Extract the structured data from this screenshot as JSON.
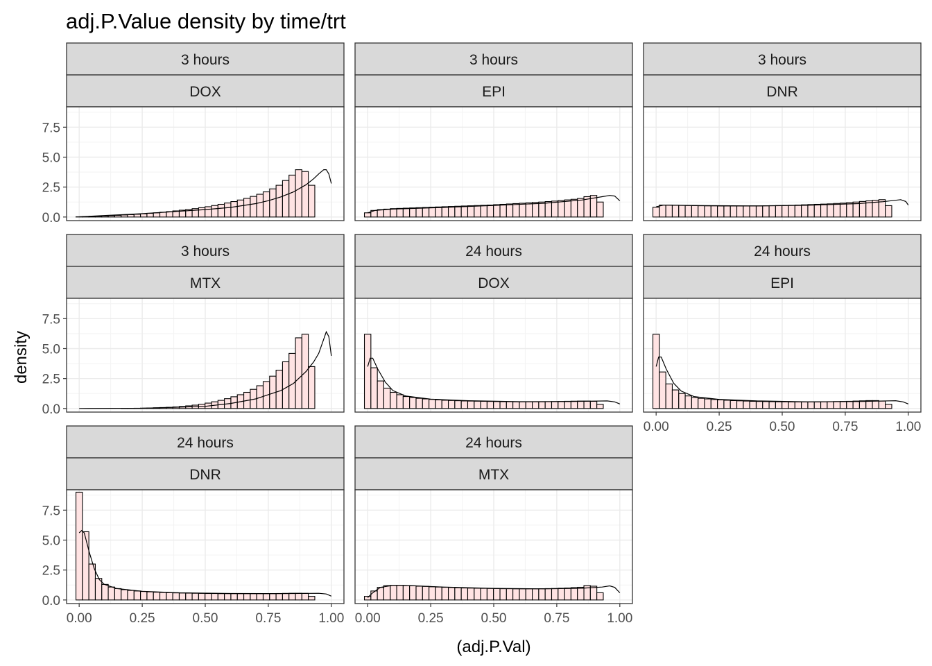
{
  "chart_data": {
    "type": "histogram",
    "title": "adj.P.Value density by time/trt",
    "xlabel": "(adj.P.Val)",
    "ylabel": "density",
    "xlim": [
      -0.05,
      1.05
    ],
    "ylim": [
      -0.3,
      9.2
    ],
    "x_ticks": [
      "0.00",
      "0.25",
      "0.50",
      "0.75",
      "1.00"
    ],
    "x_tick_values": [
      0,
      0.25,
      0.5,
      0.75,
      1.0
    ],
    "y_ticks": [
      "0.0",
      "2.5",
      "5.0",
      "7.5"
    ],
    "y_tick_values": [
      0,
      2.5,
      5.0,
      7.5
    ],
    "bin_width": 0.0256,
    "bin_centers_first": 0.0,
    "grid": true,
    "colors": {
      "bar_fill": "#ffe3e3",
      "bar_stroke": "#000000",
      "strip_fill": "#d9d9d9",
      "panel_border": "#333333",
      "grid": "#ebebeb"
    },
    "panels": [
      {
        "time": "3 hours",
        "trt": "DOX",
        "values": [
          0.02,
          0.03,
          0.05,
          0.07,
          0.09,
          0.11,
          0.14,
          0.17,
          0.2,
          0.23,
          0.27,
          0.31,
          0.35,
          0.4,
          0.45,
          0.51,
          0.57,
          0.63,
          0.7,
          0.78,
          0.86,
          0.96,
          1.06,
          1.17,
          1.29,
          1.42,
          1.56,
          1.72,
          1.9,
          2.1,
          2.35,
          2.65,
          3.05,
          3.5,
          3.95,
          3.8,
          2.65
        ],
        "density": [
          [
            0,
            0.02
          ],
          [
            0.25,
            0.28
          ],
          [
            0.5,
            0.62
          ],
          [
            0.6,
            0.8
          ],
          [
            0.7,
            1.12
          ],
          [
            0.75,
            1.36
          ],
          [
            0.8,
            1.68
          ],
          [
            0.85,
            2.1
          ],
          [
            0.9,
            2.7
          ],
          [
            0.93,
            3.2
          ],
          [
            0.95,
            3.6
          ],
          [
            0.97,
            3.95
          ],
          [
            0.98,
            3.95
          ],
          [
            0.99,
            3.6
          ],
          [
            1.0,
            2.8
          ]
        ]
      },
      {
        "time": "3 hours",
        "trt": "EPI",
        "values": [
          0.35,
          0.55,
          0.62,
          0.66,
          0.7,
          0.72,
          0.74,
          0.76,
          0.78,
          0.8,
          0.82,
          0.84,
          0.86,
          0.88,
          0.9,
          0.92,
          0.94,
          0.96,
          0.98,
          1.0,
          1.03,
          1.06,
          1.09,
          1.12,
          1.15,
          1.18,
          1.22,
          1.25,
          1.29,
          1.33,
          1.38,
          1.43,
          1.48,
          1.55,
          1.7,
          1.8,
          1.25
        ],
        "density": [
          [
            0,
            0.35
          ],
          [
            0.03,
            0.55
          ],
          [
            0.1,
            0.66
          ],
          [
            0.3,
            0.8
          ],
          [
            0.5,
            0.96
          ],
          [
            0.7,
            1.15
          ],
          [
            0.85,
            1.42
          ],
          [
            0.93,
            1.7
          ],
          [
            0.96,
            1.8
          ],
          [
            0.98,
            1.75
          ],
          [
            1.0,
            1.35
          ]
        ]
      },
      {
        "time": "3 hours",
        "trt": "DNR",
        "values": [
          0.82,
          1.0,
          1.0,
          0.98,
          0.97,
          0.96,
          0.95,
          0.94,
          0.93,
          0.93,
          0.92,
          0.92,
          0.92,
          0.92,
          0.92,
          0.93,
          0.93,
          0.94,
          0.95,
          0.96,
          0.97,
          0.98,
          1.0,
          1.02,
          1.04,
          1.06,
          1.08,
          1.1,
          1.13,
          1.16,
          1.2,
          1.25,
          1.3,
          1.35,
          1.4,
          1.45,
          0.95
        ],
        "density": [
          [
            0,
            0.85
          ],
          [
            0.03,
            1.0
          ],
          [
            0.2,
            0.95
          ],
          [
            0.4,
            0.92
          ],
          [
            0.6,
            0.98
          ],
          [
            0.8,
            1.12
          ],
          [
            0.9,
            1.28
          ],
          [
            0.97,
            1.45
          ],
          [
            0.99,
            1.3
          ],
          [
            1.0,
            1.0
          ]
        ]
      },
      {
        "time": "3 hours",
        "trt": "MTX",
        "values": [
          0,
          0,
          0,
          0,
          0,
          0,
          0,
          0.01,
          0.01,
          0.02,
          0.03,
          0.04,
          0.06,
          0.08,
          0.1,
          0.13,
          0.17,
          0.22,
          0.28,
          0.36,
          0.45,
          0.56,
          0.68,
          0.82,
          0.98,
          1.15,
          1.35,
          1.6,
          1.9,
          2.25,
          2.7,
          3.2,
          3.9,
          4.6,
          5.9,
          6.2,
          3.5
        ],
        "density": [
          [
            0,
            0
          ],
          [
            0.25,
            0.02
          ],
          [
            0.5,
            0.18
          ],
          [
            0.6,
            0.42
          ],
          [
            0.7,
            0.8
          ],
          [
            0.8,
            1.5
          ],
          [
            0.85,
            2.1
          ],
          [
            0.9,
            3.1
          ],
          [
            0.93,
            3.9
          ],
          [
            0.95,
            4.6
          ],
          [
            0.97,
            5.8
          ],
          [
            0.98,
            6.4
          ],
          [
            0.99,
            6.0
          ],
          [
            1.0,
            4.4
          ]
        ]
      },
      {
        "time": "24 hours",
        "trt": "DOX",
        "values": [
          6.2,
          3.4,
          2.3,
          1.7,
          1.35,
          1.15,
          1.0,
          0.92,
          0.85,
          0.8,
          0.76,
          0.72,
          0.69,
          0.67,
          0.65,
          0.63,
          0.62,
          0.61,
          0.6,
          0.59,
          0.58,
          0.57,
          0.57,
          0.56,
          0.56,
          0.56,
          0.56,
          0.56,
          0.57,
          0.58,
          0.59,
          0.6,
          0.61,
          0.62,
          0.62,
          0.6,
          0.35
        ],
        "density": [
          [
            0,
            3.5
          ],
          [
            0.01,
            4.2
          ],
          [
            0.02,
            4.2
          ],
          [
            0.04,
            3.3
          ],
          [
            0.07,
            2.2
          ],
          [
            0.1,
            1.5
          ],
          [
            0.15,
            1.05
          ],
          [
            0.25,
            0.78
          ],
          [
            0.4,
            0.65
          ],
          [
            0.6,
            0.57
          ],
          [
            0.8,
            0.58
          ],
          [
            0.95,
            0.63
          ],
          [
            0.98,
            0.55
          ],
          [
            1.0,
            0.38
          ]
        ]
      },
      {
        "time": "24 hours",
        "trt": "EPI",
        "values": [
          6.2,
          3.05,
          2.05,
          1.55,
          1.25,
          1.05,
          0.92,
          0.85,
          0.8,
          0.75,
          0.72,
          0.69,
          0.66,
          0.64,
          0.62,
          0.6,
          0.59,
          0.58,
          0.57,
          0.56,
          0.56,
          0.55,
          0.55,
          0.55,
          0.55,
          0.55,
          0.56,
          0.57,
          0.58,
          0.59,
          0.6,
          0.62,
          0.64,
          0.66,
          0.66,
          0.62,
          0.35
        ],
        "density": [
          [
            0,
            3.5
          ],
          [
            0.01,
            4.3
          ],
          [
            0.02,
            4.3
          ],
          [
            0.04,
            3.3
          ],
          [
            0.07,
            2.1
          ],
          [
            0.1,
            1.45
          ],
          [
            0.15,
            1.0
          ],
          [
            0.25,
            0.76
          ],
          [
            0.4,
            0.63
          ],
          [
            0.6,
            0.56
          ],
          [
            0.8,
            0.58
          ],
          [
            0.95,
            0.65
          ],
          [
            0.98,
            0.55
          ],
          [
            1.0,
            0.38
          ]
        ]
      },
      {
        "time": "24 hours",
        "trt": "DNR",
        "values": [
          9.0,
          5.7,
          3.0,
          1.8,
          1.3,
          1.08,
          0.95,
          0.86,
          0.8,
          0.75,
          0.71,
          0.68,
          0.65,
          0.63,
          0.61,
          0.59,
          0.58,
          0.57,
          0.56,
          0.55,
          0.54,
          0.54,
          0.53,
          0.53,
          0.53,
          0.53,
          0.53,
          0.53,
          0.53,
          0.53,
          0.53,
          0.54,
          0.55,
          0.56,
          0.56,
          0.55,
          0.3
        ],
        "density": [
          [
            0,
            5.6
          ],
          [
            0.01,
            5.8
          ],
          [
            0.02,
            5.6
          ],
          [
            0.04,
            4.0
          ],
          [
            0.06,
            2.6
          ],
          [
            0.08,
            1.7
          ],
          [
            0.1,
            1.3
          ],
          [
            0.15,
            0.95
          ],
          [
            0.25,
            0.72
          ],
          [
            0.4,
            0.6
          ],
          [
            0.6,
            0.54
          ],
          [
            0.8,
            0.53
          ],
          [
            0.95,
            0.56
          ],
          [
            0.98,
            0.5
          ],
          [
            1.0,
            0.32
          ]
        ]
      },
      {
        "time": "24 hours",
        "trt": "MTX",
        "values": [
          0.3,
          0.75,
          1.05,
          1.2,
          1.22,
          1.22,
          1.2,
          1.18,
          1.15,
          1.13,
          1.1,
          1.08,
          1.06,
          1.04,
          1.02,
          1.0,
          0.99,
          0.98,
          0.97,
          0.96,
          0.95,
          0.94,
          0.94,
          0.93,
          0.93,
          0.93,
          0.93,
          0.94,
          0.95,
          0.96,
          0.98,
          1.0,
          1.03,
          1.06,
          1.2,
          1.15,
          0.6
        ],
        "density": [
          [
            0,
            0.2
          ],
          [
            0.02,
            0.6
          ],
          [
            0.05,
            1.05
          ],
          [
            0.1,
            1.22
          ],
          [
            0.15,
            1.22
          ],
          [
            0.3,
            1.08
          ],
          [
            0.5,
            0.97
          ],
          [
            0.7,
            0.93
          ],
          [
            0.85,
            0.98
          ],
          [
            0.93,
            1.08
          ],
          [
            0.96,
            1.18
          ],
          [
            0.98,
            1.05
          ],
          [
            1.0,
            0.6
          ]
        ]
      }
    ]
  }
}
